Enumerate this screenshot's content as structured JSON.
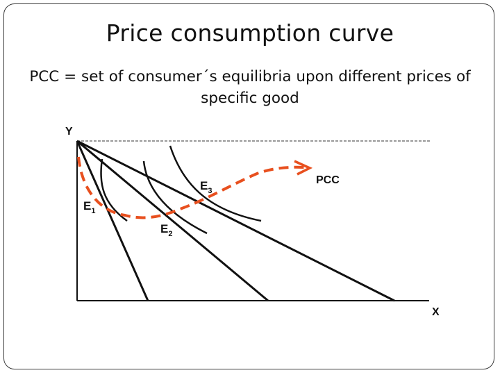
{
  "slide": {
    "title": "Price consumption curve",
    "subtitle_line1": "PCC = set of consumer´s equilibria upon different prices of",
    "subtitle_line2": "specific good"
  },
  "diagram": {
    "y_axis_label": "Y",
    "x_axis_label": "X",
    "curve_label": "PCC",
    "equilibria": [
      {
        "letter": "E",
        "subscript": "1"
      },
      {
        "letter": "E",
        "subscript": "2"
      },
      {
        "letter": "E",
        "subscript": "3"
      }
    ],
    "colors": {
      "pcc": "#e8501f",
      "lines": "#111111"
    }
  }
}
